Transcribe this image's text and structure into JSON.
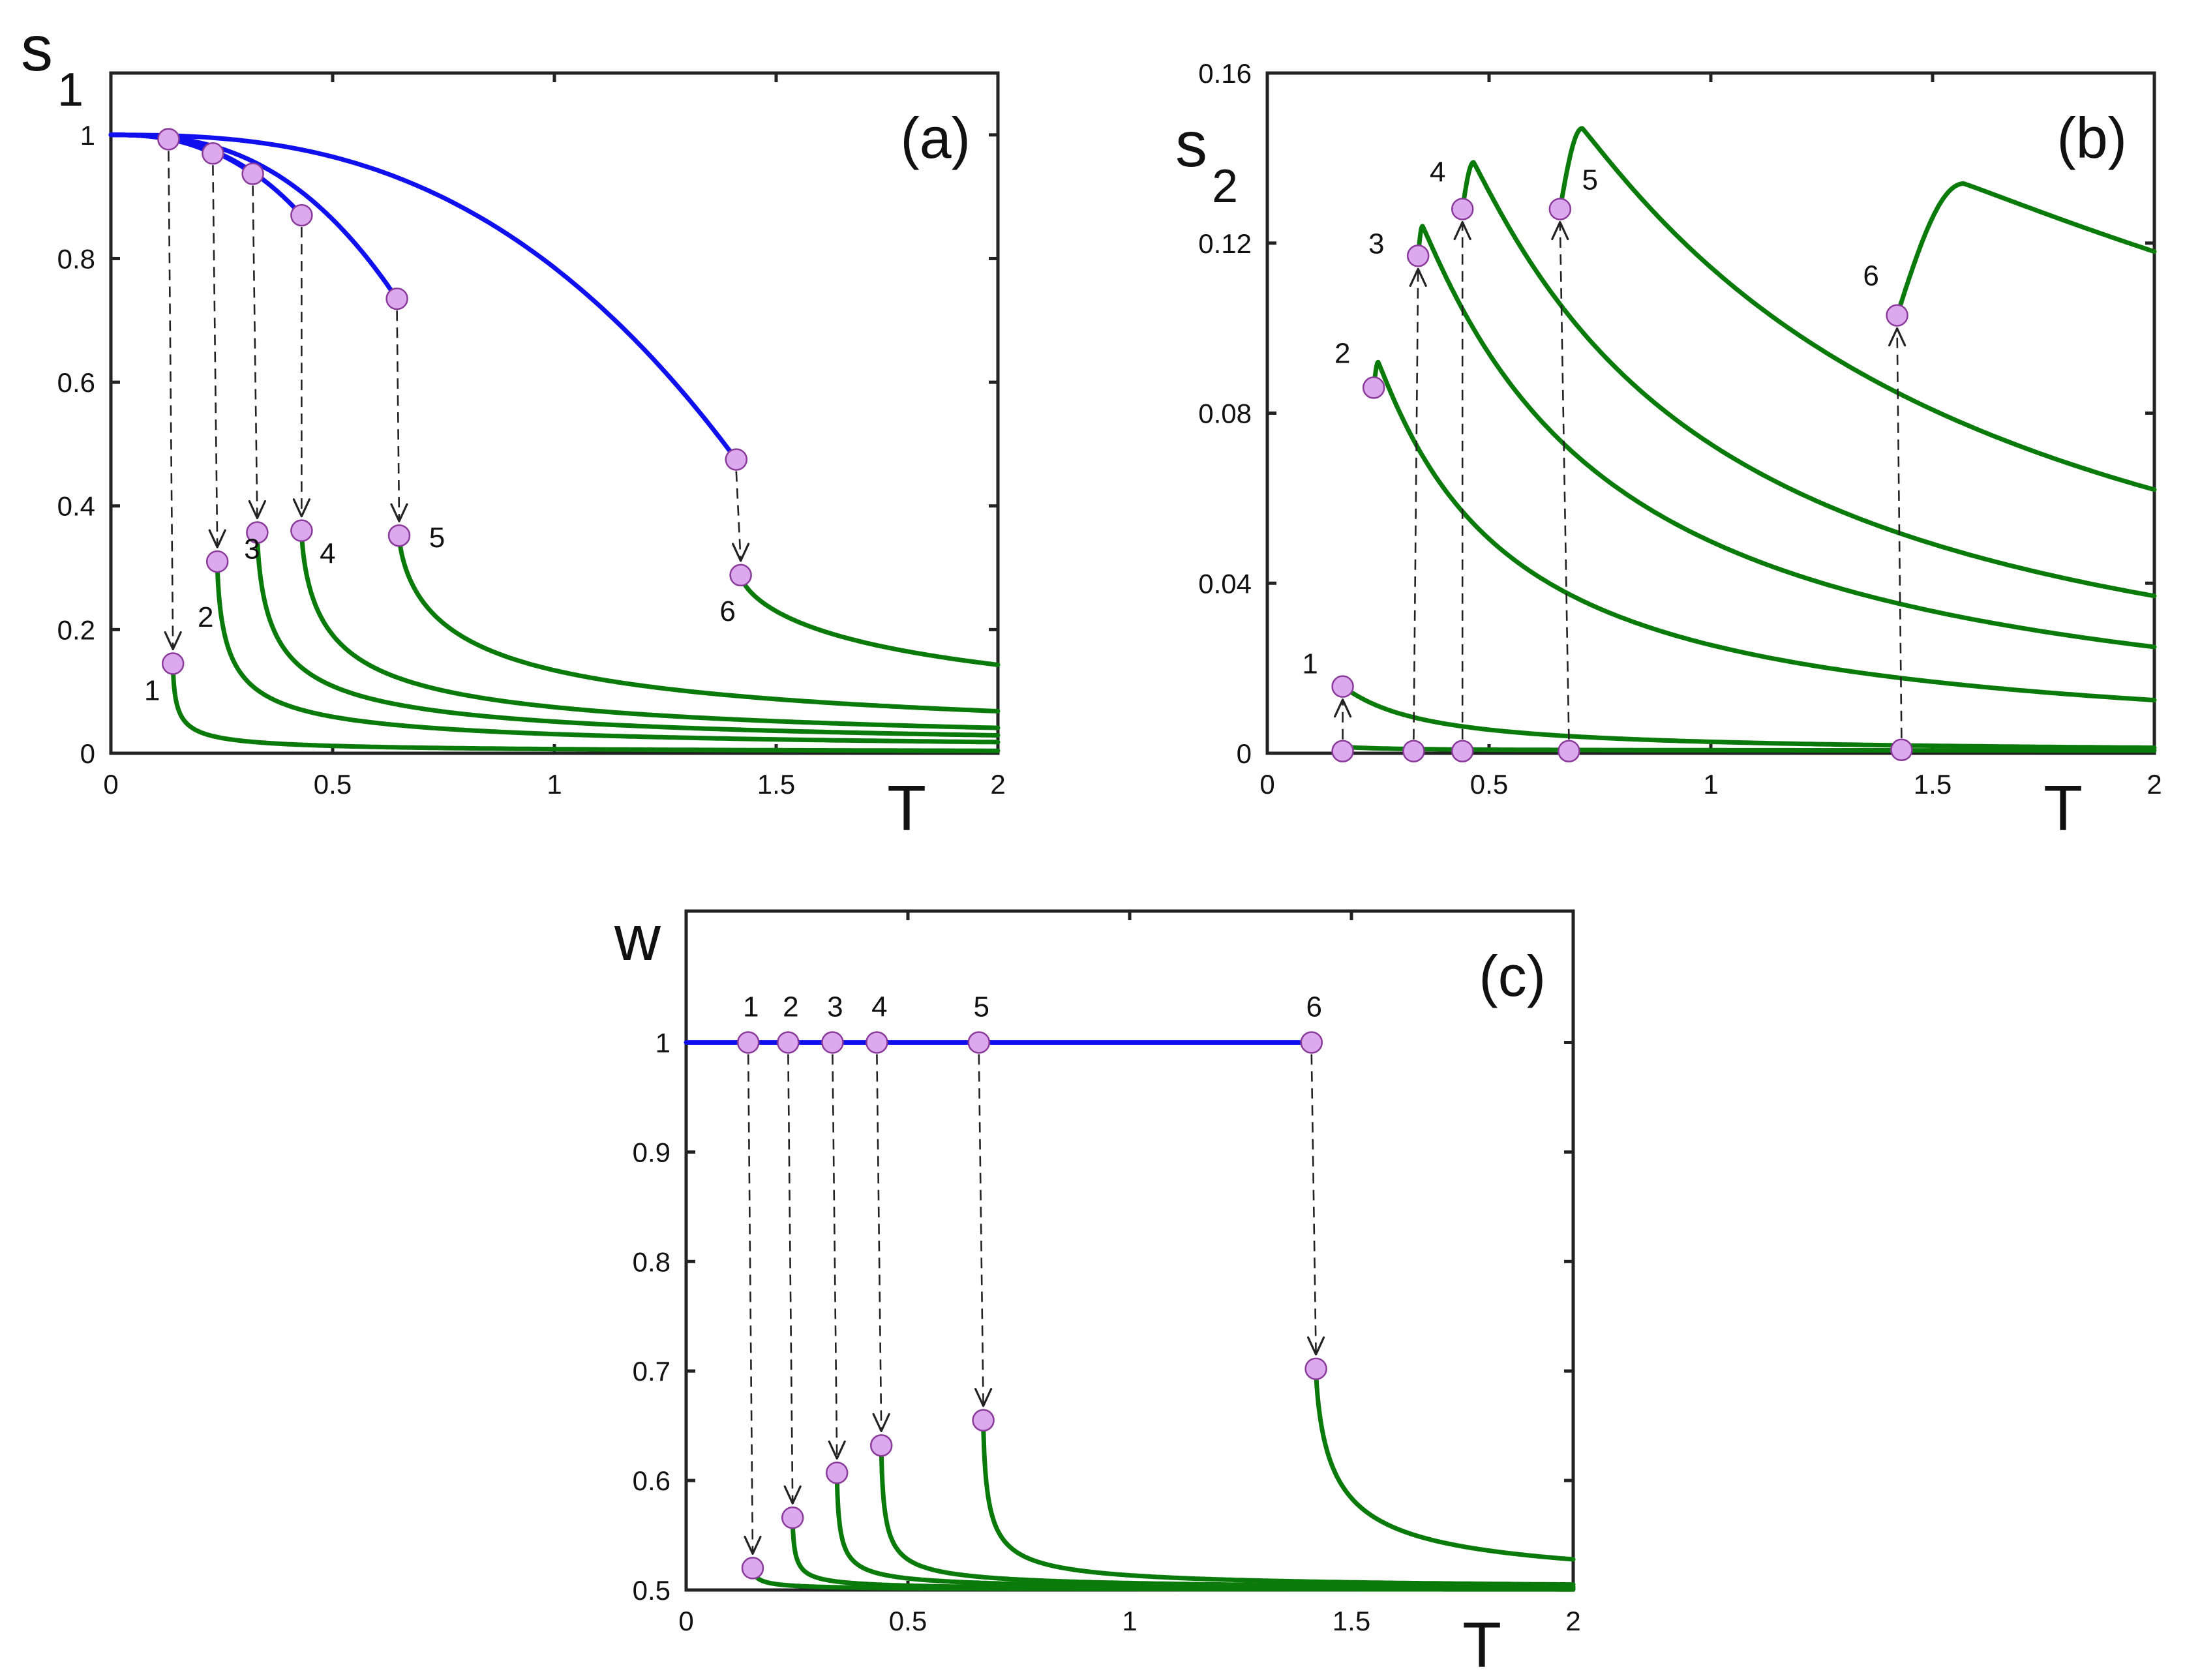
{
  "colors": {
    "blue_curve": "#1010ee",
    "green_curve": "#0a7a0a",
    "marker_fill": "#dca8ee",
    "marker_edge": "#8a3a9a"
  },
  "chart_data": [
    {
      "id": "a",
      "type": "line",
      "panel_label": "(a)",
      "xlabel": "T",
      "ylabel": "s",
      "ylabel_sub": "1",
      "xlim": [
        0,
        2
      ],
      "ylim": [
        0,
        1.1
      ],
      "x_ticks": [
        0,
        0.5,
        1,
        1.5,
        2
      ],
      "x_tick_labels": [
        "0",
        "0.5",
        "1",
        "1.5",
        "2"
      ],
      "y_ticks": [
        0,
        0.2,
        0.4,
        0.6,
        0.8,
        1
      ],
      "y_tick_labels": [
        "0",
        "0.2",
        "0.4",
        "0.6",
        "0.8",
        "1"
      ],
      "upper_branch": {
        "T_end": [
          0.13,
          0.23,
          0.32,
          0.43,
          0.645,
          1.41
        ],
        "value_end": [
          0.993,
          0.97,
          0.937,
          0.87,
          0.735,
          0.475
        ]
      },
      "lower_branch": {
        "T_start": [
          0.14,
          0.24,
          0.33,
          0.43,
          0.65,
          1.42
        ],
        "value_start": [
          0.145,
          0.31,
          0.357,
          0.36,
          0.352,
          0.288
        ],
        "value_at_2": [
          0.004,
          0.018,
          0.029,
          0.041,
          0.068,
          0.143
        ]
      },
      "point_labels": [
        "1",
        "2",
        "3",
        "4",
        "5",
        "6"
      ]
    },
    {
      "id": "b",
      "type": "line",
      "panel_label": "(b)",
      "xlabel": "T",
      "ylabel": "s",
      "ylabel_sub": "2",
      "xlim": [
        0,
        2
      ],
      "ylim": [
        0,
        0.16
      ],
      "x_ticks": [
        0,
        0.5,
        1,
        1.5,
        2
      ],
      "x_tick_labels": [
        "0",
        "0.5",
        "1",
        "1.5",
        "2"
      ],
      "y_ticks": [
        0,
        0.04,
        0.08,
        0.12,
        0.16
      ],
      "y_tick_labels": [
        "0",
        "0.04",
        "0.08",
        "0.12",
        "0.16"
      ],
      "lower_branch": {
        "T": [
          0.17,
          0.33,
          0.44,
          0.68,
          1.43
        ],
        "value": [
          0.0005,
          0.0005,
          0.0005,
          0.0005,
          0.0008
        ]
      },
      "upper_branch": {
        "T_start": [
          0.17,
          0.24,
          0.34,
          0.44,
          0.66,
          1.42
        ],
        "value_start": [
          0.0157,
          0.086,
          0.117,
          0.128,
          0.128,
          0.103
        ],
        "T_peak": [
          0.17,
          0.25,
          0.35,
          0.465,
          0.71,
          1.57
        ],
        "value_peak": [
          0.0157,
          0.092,
          0.124,
          0.139,
          0.147,
          0.134
        ],
        "value_at_2": [
          0.0013,
          0.0125,
          0.025,
          0.037,
          0.062,
          0.118
        ]
      },
      "point_labels": [
        "1",
        "2",
        "3",
        "4",
        "5",
        "6"
      ]
    },
    {
      "id": "c",
      "type": "line",
      "panel_label": "(c)",
      "xlabel": "T",
      "ylabel": "w",
      "xlim": [
        0,
        2
      ],
      "ylim": [
        0.5,
        1.12
      ],
      "x_ticks": [
        0,
        0.5,
        1,
        1.5,
        2
      ],
      "x_tick_labels": [
        "0",
        "0.5",
        "1",
        "1.5",
        "2"
      ],
      "y_ticks": [
        0.5,
        0.6,
        0.7,
        0.8,
        0.9,
        1
      ],
      "y_tick_labels": [
        "0.5",
        "0.6",
        "0.7",
        "0.8",
        "0.9",
        "1"
      ],
      "upper_branch": {
        "T": [
          0.14,
          0.23,
          0.33,
          0.43,
          0.66,
          1.41
        ],
        "value": 1,
        "T_max_line": 1.41
      },
      "lower_branch": {
        "T_start": [
          0.15,
          0.24,
          0.34,
          0.44,
          0.67,
          1.42
        ],
        "value_start": [
          0.52,
          0.566,
          0.607,
          0.632,
          0.655,
          0.702
        ],
        "value_at_2": [
          0.5005,
          0.501,
          0.502,
          0.503,
          0.505,
          0.528
        ]
      },
      "point_labels": [
        "1",
        "2",
        "3",
        "4",
        "5",
        "6"
      ]
    }
  ]
}
